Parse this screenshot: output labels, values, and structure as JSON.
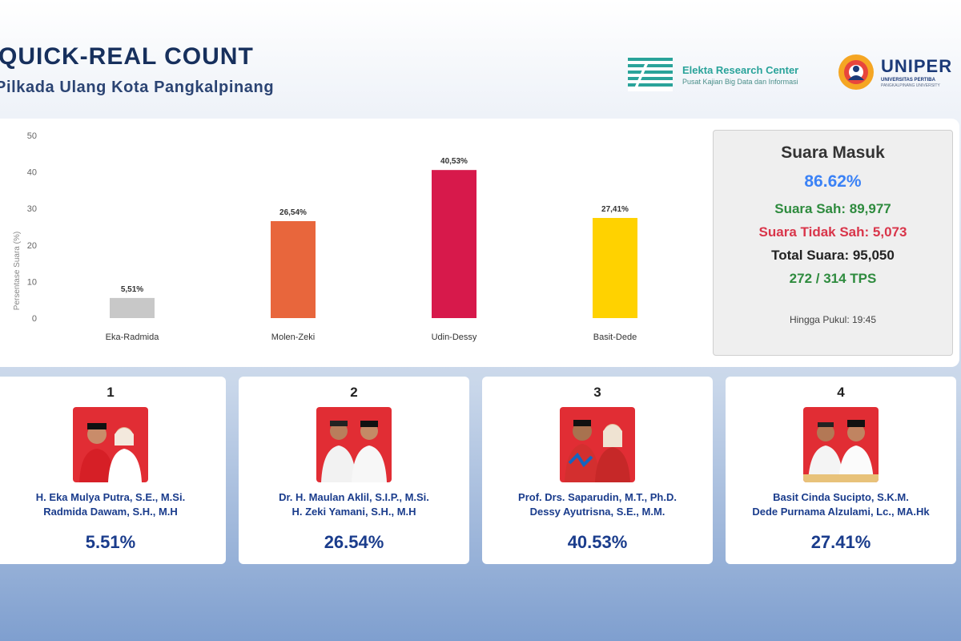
{
  "header": {
    "title": "QUICK-REAL COUNT",
    "subtitle": "Pilkada Ulang Kota Pangkalpinang",
    "partner1_name": "Elekta Research Center",
    "partner1_tagline": "Pusat Kajian Big Data dan Informasi",
    "partner2_name": "UNIPER",
    "partner2_sub": "UNIVERSITAS PERTIBA",
    "partner2_sub2": "PANGKALPINANG UNIVERSITY"
  },
  "chart_data": {
    "type": "bar",
    "ylabel": "Persentase Suara (%)",
    "ylim": [
      0,
      50
    ],
    "yticks": [
      0,
      10,
      20,
      30,
      40,
      50
    ],
    "categories": [
      "Eka-Radmida",
      "Molen-Zeki",
      "Udin-Dessy",
      "Basit-Dede"
    ],
    "values": [
      5.51,
      26.54,
      40.53,
      27.41
    ],
    "data_labels": [
      "5,51%",
      "26,54%",
      "40,53%",
      "27,41%"
    ],
    "colors": [
      "#c8c8c8",
      "#e8663c",
      "#d7194b",
      "#ffd200"
    ]
  },
  "stats": {
    "title": "Suara Masuk",
    "percent": "86.62%",
    "valid": "Suara Sah: 89,977",
    "invalid": "Suara Tidak Sah: 5,073",
    "total": "Total Suara: 95,050",
    "tps": "272 / 314 TPS",
    "time": "Hingga Pukul: 19:45"
  },
  "candidates": [
    {
      "number": "1",
      "name1": "H. Eka Mulya Putra, S.E., M.Si.",
      "name2": "Radmida Dawam, S.H., M.H",
      "percent": "5.51%"
    },
    {
      "number": "2",
      "name1": "Dr. H. Maulan Aklil, S.I.P., M.Si.",
      "name2": "H. Zeki Yamani, S.H., M.H",
      "percent": "26.54%"
    },
    {
      "number": "3",
      "name1": "Prof. Drs. Saparudin, M.T., Ph.D.",
      "name2": "Dessy Ayutrisna, S.E., M.M.",
      "percent": "40.53%"
    },
    {
      "number": "4",
      "name1": "Basit Cinda Sucipto, S.K.M.",
      "name2": "Dede Purnama Alzulami, Lc., MA.Hk",
      "percent": "27.41%"
    }
  ],
  "icons": {
    "partner1_logo": "elekta-logo-icon",
    "partner2_logo": "uniper-logo-icon",
    "candidate_photo": "candidate-pair-photo"
  }
}
